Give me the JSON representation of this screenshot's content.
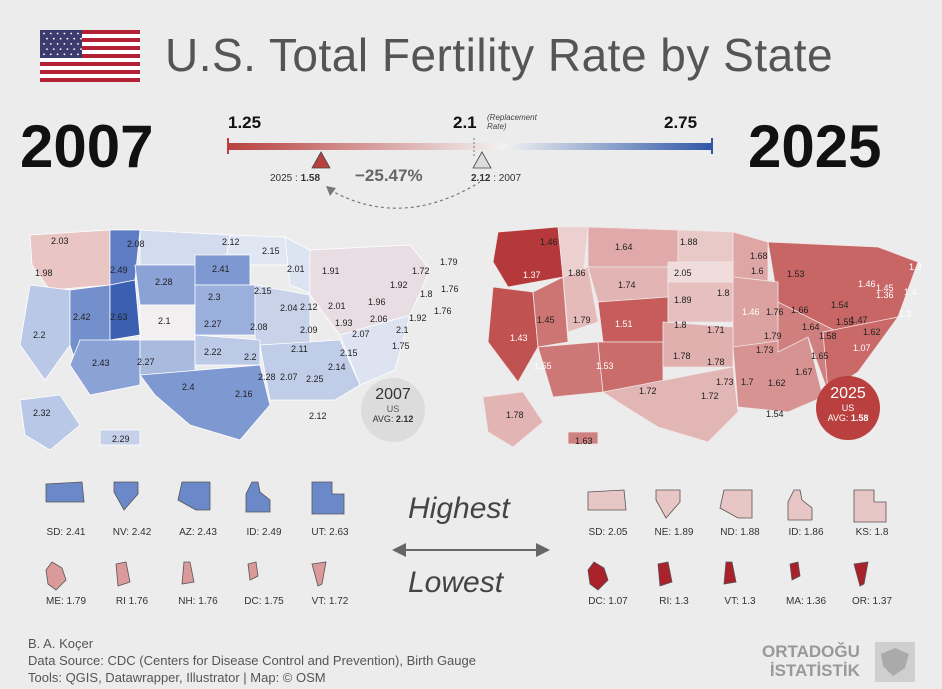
{
  "title": "U.S. Total Fertility Rate by State",
  "flag_colors": {
    "red": "#b22234",
    "white": "#ffffff",
    "blue": "#3c3b6e"
  },
  "year_left": "2007",
  "year_right": "2025",
  "scale": {
    "min": "1.25",
    "mid": "2.1",
    "mid_note_1": "(Replacement",
    "mid_note_2": "Rate)",
    "max": "2.75",
    "low_color": "#b8403f",
    "high_color": "#2f57a8",
    "marker_2025_prefix": "2025 : ",
    "marker_2025_value": "1.58",
    "marker_2007_value": "2.12",
    "marker_2007_suffix": " : 2007",
    "change": "−25.47%"
  },
  "avg_2007": {
    "year": "2007",
    "label": "US",
    "avg_prefix": "AVG: ",
    "value": "2.12"
  },
  "avg_2025": {
    "year": "2025",
    "label": "US",
    "avg_prefix": "AVG: ",
    "value": "1.58"
  },
  "map2007_labels": [
    "2.03",
    "2.08",
    "2.12",
    "2.15",
    "1.98",
    "2.49",
    "2.28",
    "2.41",
    "2.01",
    "1.91",
    "1.79",
    "1.72",
    "1.92",
    "1.76",
    "1.8",
    "2.42",
    "2.63",
    "2.1",
    "2.27",
    "2.3",
    "2.15",
    "2.04",
    "2.12",
    "2.01",
    "1.96",
    "1.76",
    "1.92",
    "2.06",
    "1.93",
    "2.1",
    "2.07",
    "2.09",
    "2.08",
    "1.75",
    "2.2",
    "2.43",
    "2.27",
    "2.22",
    "2.11",
    "2.15",
    "2.2",
    "2.14",
    "2.4",
    "2.28",
    "2.07",
    "2.25",
    "2.16",
    "2.32",
    "2.12",
    "2.29"
  ],
  "map2025_labels": [
    "1.46",
    "1.64",
    "1.88",
    "1.68",
    "1.37",
    "1.86",
    "2.05",
    "1.6",
    "1.53",
    "1.74",
    "1.8",
    "1.45",
    "1.46",
    "1.3",
    "1.4",
    "1.89",
    "1.43",
    "1.45",
    "1.79",
    "1.51",
    "1.8",
    "1.71",
    "1.46",
    "1.76",
    "1.66",
    "1.54",
    "1.36",
    "1.47",
    "1.3",
    "1.64",
    "1.55",
    "1.62",
    "1.79",
    "1.58",
    "1.07",
    "1.55",
    "1.53",
    "1.78",
    "1.78",
    "1.73",
    "1.65",
    "1.73",
    "1.7",
    "1.62",
    "1.67",
    "1.72",
    "1.72",
    "1.78",
    "1.54",
    "1.63"
  ],
  "highest_2007": [
    {
      "label": "SD: 2.41"
    },
    {
      "label": "NV: 2.42"
    },
    {
      "label": "AZ: 2.43"
    },
    {
      "label": "ID: 2.49"
    },
    {
      "label": "UT: 2.63"
    }
  ],
  "lowest_2007": [
    {
      "label": "ME: 1.79"
    },
    {
      "label": "RI 1.76"
    },
    {
      "label": "NH: 1.76"
    },
    {
      "label": "DC: 1.75"
    },
    {
      "label": "VT: 1.72"
    }
  ],
  "highest_2025": [
    {
      "label": "SD:  2.05"
    },
    {
      "label": "NE:  1.89"
    },
    {
      "label": "ND: 1.88"
    },
    {
      "label": "ID:  1.86"
    },
    {
      "label": "KS:  1.8"
    }
  ],
  "lowest_2025": [
    {
      "label": "DC: 1.07"
    },
    {
      "label": "RI: 1.3"
    },
    {
      "label": "VT: 1.3"
    },
    {
      "label": "MA: 1.36"
    },
    {
      "label": "OR: 1.37"
    }
  ],
  "highest_label": "Highest",
  "lowest_label": "Lowest",
  "credits": {
    "author": "B. A. Koçer",
    "source": "Data Source: CDC (Centers for Disease Control and Prevention), Birth Gauge",
    "tools": "Tools: QGIS, Datawrapper, Illustrator | Map: © OSM"
  },
  "logo": {
    "line1": "ORTADOĞU",
    "line2": "İSTATİSTİK"
  }
}
